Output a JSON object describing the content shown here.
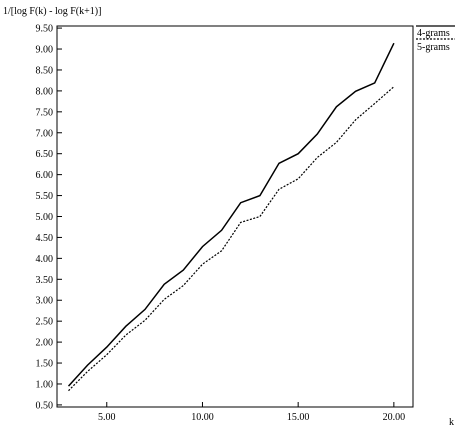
{
  "chart_data": {
    "type": "line",
    "ylabel": "1/[log F(k) - log F(k+1)]",
    "xlabel": "k",
    "xlim": [
      2.4,
      21.0
    ],
    "ylim": [
      0.45,
      9.55
    ],
    "x_ticks": [
      5,
      10,
      15,
      20
    ],
    "x_tick_labels": [
      "5.00",
      "10.00",
      "15.00",
      "20.00"
    ],
    "y_ticks": [
      0.5,
      1,
      1.5,
      2,
      2.5,
      3,
      3.5,
      4,
      4.5,
      5,
      5.5,
      6,
      6.5,
      7,
      7.5,
      8,
      8.5,
      9,
      9.5
    ],
    "y_tick_labels": [
      "0.50",
      "1.00",
      "1.50",
      "2.00",
      "2.50",
      "3.00",
      "3.50",
      "4.00",
      "4.50",
      "5.00",
      "5.50",
      "6.00",
      "6.50",
      "7.00",
      "7.50",
      "8.00",
      "8.50",
      "9.00",
      "9.50"
    ],
    "grid": false,
    "legend_position": "top-right, outside plot",
    "x": [
      3,
      4,
      5,
      6,
      7,
      8,
      9,
      10,
      11,
      12,
      13,
      14,
      15,
      16,
      17,
      18,
      19,
      20
    ],
    "series": [
      {
        "name": "4-grams",
        "style": "solid",
        "color": "#000000",
        "values": [
          0.95,
          1.45,
          1.88,
          2.38,
          2.78,
          3.38,
          3.72,
          4.28,
          4.67,
          5.33,
          5.5,
          6.27,
          6.5,
          6.97,
          7.62,
          7.99,
          8.19,
          9.14
        ]
      },
      {
        "name": "5-grams",
        "style": "dotted",
        "color": "#000000",
        "values": [
          0.84,
          1.3,
          1.7,
          2.17,
          2.52,
          3.02,
          3.35,
          3.86,
          4.18,
          4.86,
          5.0,
          5.65,
          5.9,
          6.41,
          6.77,
          7.31,
          7.7,
          8.1
        ]
      }
    ]
  }
}
